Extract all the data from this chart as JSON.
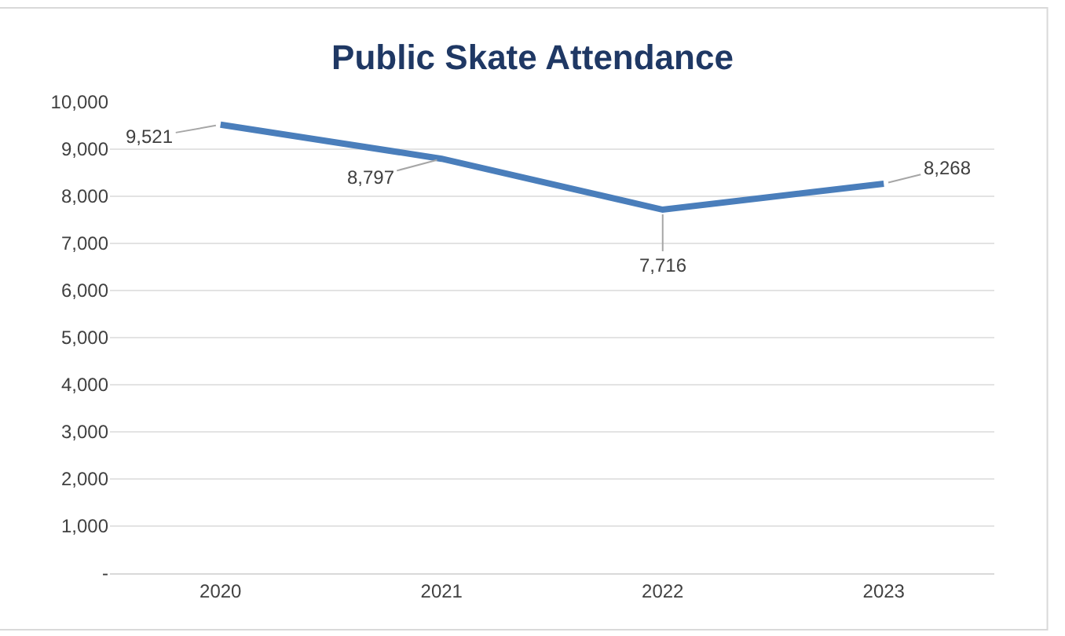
{
  "chart_data": {
    "type": "line",
    "title": "Public Skate Attendance",
    "categories": [
      "2020",
      "2021",
      "2022",
      "2023"
    ],
    "series": [
      {
        "color": "#4a7ebb",
        "values": [
          9521,
          8797,
          7716,
          8268
        ],
        "value_labels": [
          "9,521",
          "8,797",
          "7,716",
          "8,268"
        ]
      }
    ],
    "ylim": [
      0,
      10000
    ],
    "yticks": [
      {
        "value": 0,
        "label": "-"
      },
      {
        "value": 1000,
        "label": "1,000"
      },
      {
        "value": 2000,
        "label": "2,000"
      },
      {
        "value": 3000,
        "label": "3,000"
      },
      {
        "value": 4000,
        "label": "4,000"
      },
      {
        "value": 5000,
        "label": "5,000"
      },
      {
        "value": 6000,
        "label": "6,000"
      },
      {
        "value": 7000,
        "label": "7,000"
      },
      {
        "value": 8000,
        "label": "8,000"
      },
      {
        "value": 9000,
        "label": "9,000"
      },
      {
        "value": 10000,
        "label": "10,000"
      }
    ],
    "grid": "y",
    "marker": "none",
    "line_style": "solid"
  }
}
